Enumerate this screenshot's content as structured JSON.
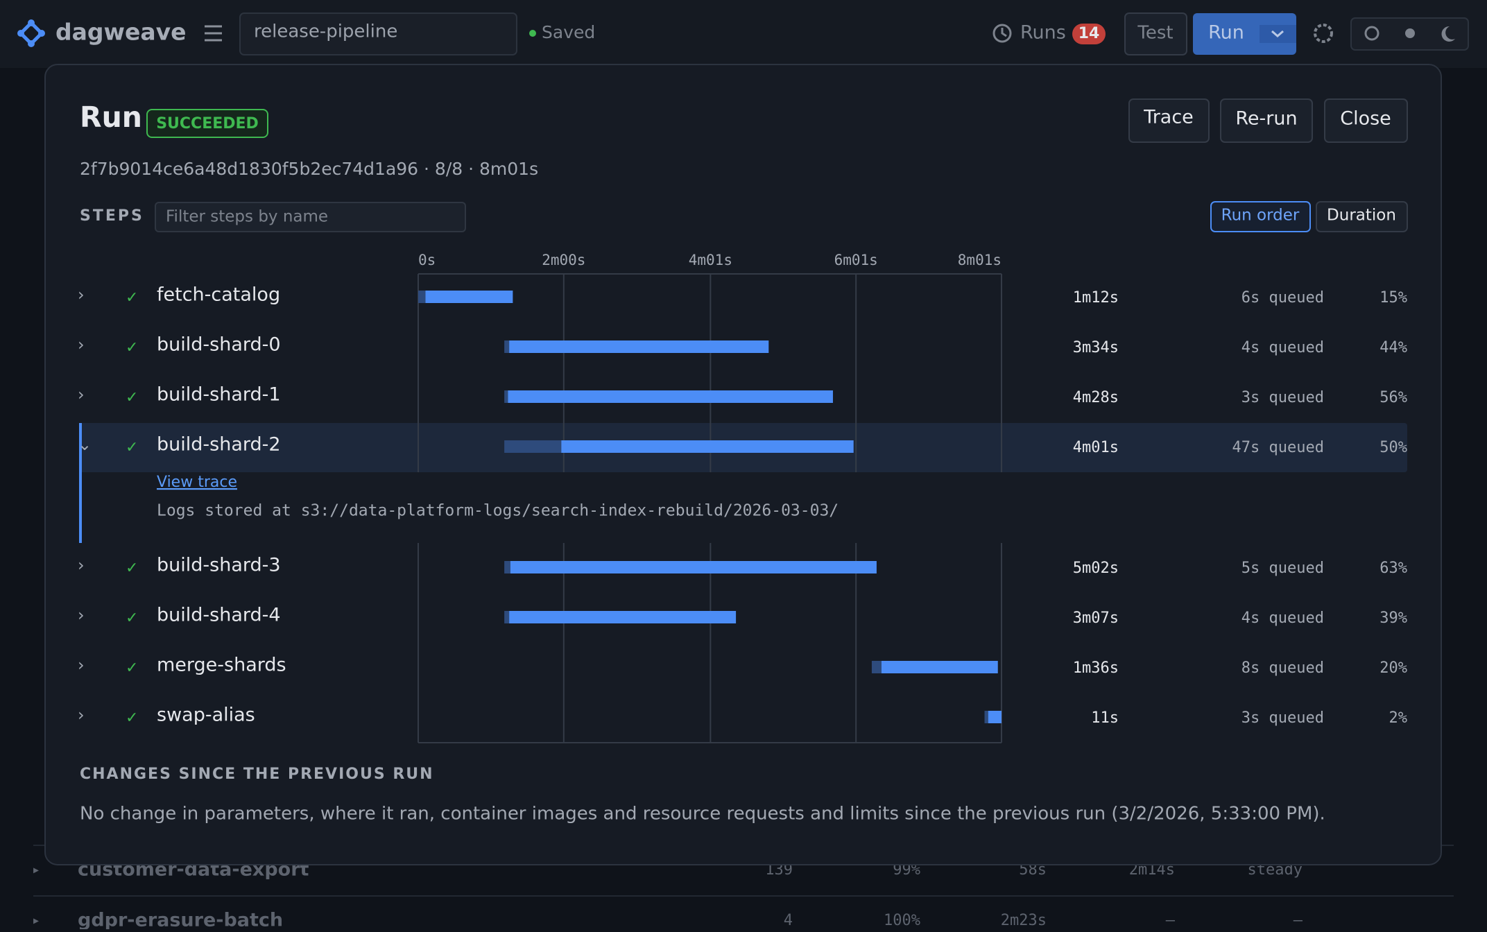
{
  "topbar": {
    "brand": "dagweave",
    "pipeline": "release-pipeline",
    "status": "Saved",
    "runs_label": "Runs",
    "runs_count": "14",
    "test": "Test",
    "run": "Run"
  },
  "background_rows": [
    [
      "customer-data-export",
      "139",
      "99%",
      "58s",
      "2m14s",
      "steady"
    ],
    [
      "gdpr-erasure-batch",
      "4",
      "100%",
      "2m23s",
      "–",
      "–"
    ]
  ],
  "modal": {
    "title": "Run",
    "status": "SUCCEEDED",
    "summary": "2f7b9014ce6a48d1830f5b2ec74d1a96 · 8/8 · 8m01s",
    "buttons": [
      "Trace",
      "Re-run",
      "Close"
    ],
    "steps_label": "STEPS",
    "filter_placeholder": "Filter steps by name",
    "sort_options": [
      "Run order",
      "Duration"
    ],
    "expanded": {
      "link": "View trace",
      "log": "Logs stored at s3://data-platform-logs/search-index-rebuild/2026-03-03/"
    },
    "changes_title": "CHANGES SINCE THE PREVIOUS RUN",
    "changes_text": "No change in parameters, where it ran, container images and resource requests and limits since the previous run (3/2/2026, 5:33:00 PM)."
  },
  "chart_data": {
    "type": "gantt",
    "xlim": [
      0,
      481
    ],
    "xticks": [
      {
        "value": 0,
        "label": "0s"
      },
      {
        "value": 120,
        "label": "2m00s"
      },
      {
        "value": 241,
        "label": "4m01s"
      },
      {
        "value": 361,
        "label": "6m01s"
      },
      {
        "value": 481,
        "label": "8m01s"
      }
    ],
    "categories": [
      "fetch-catalog",
      "build-shard-0",
      "build-shard-1",
      "build-shard-2",
      "build-shard-3",
      "build-shard-4",
      "merge-shards",
      "swap-alias"
    ],
    "start": [
      0,
      71,
      71,
      71,
      71,
      71,
      374,
      467
    ],
    "queued": [
      6,
      4,
      3,
      47,
      5,
      4,
      8,
      3
    ],
    "queued_labels": [
      "6s queued",
      "4s queued",
      "3s queued",
      "47s queued",
      "5s queued",
      "4s queued",
      "8s queued",
      "3s queued"
    ],
    "values": [
      72,
      214,
      268,
      241,
      302,
      187,
      96,
      11
    ],
    "value_labels": [
      "1m12s",
      "3m34s",
      "4m28s",
      "4m01s",
      "5m02s",
      "3m07s",
      "1m36s",
      "11s"
    ],
    "shares": [
      15,
      44,
      56,
      50,
      63,
      39,
      20,
      2
    ],
    "share_labels": [
      "15%",
      "44%",
      "56%",
      "50%",
      "63%",
      "39%",
      "20%",
      "2%"
    ],
    "run_color": "#4c8df6",
    "queue_color": "#2e4b7c",
    "expanded_index": 3,
    "grid": true
  }
}
